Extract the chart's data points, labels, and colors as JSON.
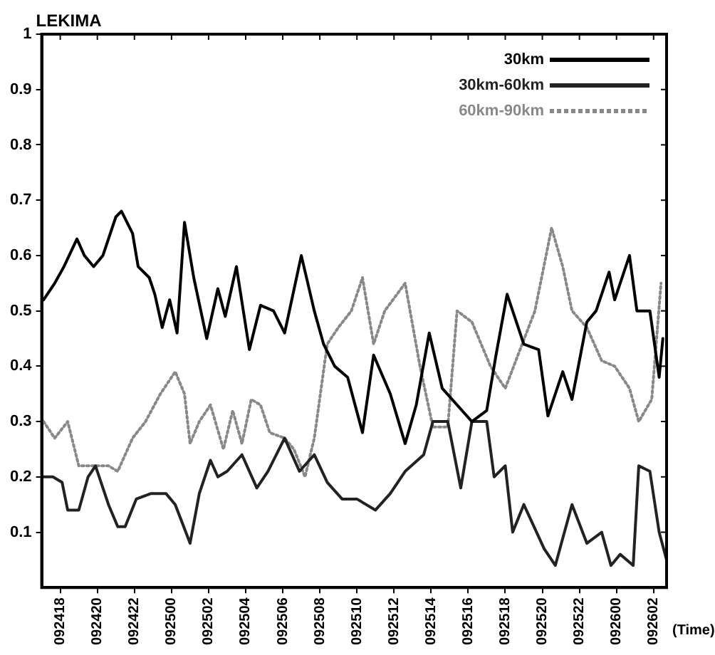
{
  "chart_data": {
    "type": "line",
    "title": "LEKIMA",
    "xlabel": "(Time)",
    "xlim": [
      "--09-24T17:00",
      "--09-26T02:42"
    ],
    "xticks": [
      {
        "value": "--09-24T18:00",
        "label": "092418"
      },
      {
        "value": "--09-24T20:00",
        "label": "092420"
      },
      {
        "value": "--09-24T22:00",
        "label": "092422"
      },
      {
        "value": "--09-25T00:00",
        "label": "092500"
      },
      {
        "value": "--09-25T02:00",
        "label": "092502"
      },
      {
        "value": "--09-25T04:00",
        "label": "092504"
      },
      {
        "value": "--09-25T06:00",
        "label": "092506"
      },
      {
        "value": "--09-25T08:00",
        "label": "092508"
      },
      {
        "value": "--09-25T10:00",
        "label": "092510"
      },
      {
        "value": "--09-25T12:00",
        "label": "092512"
      },
      {
        "value": "--09-25T14:00",
        "label": "092514"
      },
      {
        "value": "--09-25T16:00",
        "label": "092516"
      },
      {
        "value": "--09-25T18:00",
        "label": "092518"
      },
      {
        "value": "--09-25T20:00",
        "label": "092520"
      },
      {
        "value": "--09-25T22:00",
        "label": "092522"
      },
      {
        "value": "--09-26T00:00",
        "label": "092600"
      },
      {
        "value": "--09-26T02:00",
        "label": "092602"
      }
    ],
    "ylim": [
      0,
      1
    ],
    "yticks": [
      0.1,
      0.2,
      0.3,
      0.4,
      0.5,
      0.6,
      0.7,
      0.8,
      0.9,
      1
    ],
    "grid": false,
    "legend": "top right",
    "marker": "none",
    "series": [
      {
        "name": "30km",
        "color": "#000000",
        "line_style": "solid",
        "x": [
          "--09-24T17:06",
          "--09-24T17:42",
          "--09-24T18:12",
          "--09-24T18:54",
          "--09-24T19:18",
          "--09-24T19:48",
          "--09-24T20:18",
          "--09-24T21:00",
          "--09-24T21:18",
          "--09-24T21:54",
          "--09-24T22:12",
          "--09-24T22:48",
          "--09-24T23:06",
          "--09-24T23:30",
          "--09-24T23:54",
          "--09-25T00:18",
          "--09-25T00:42",
          "--09-25T01:12",
          "--09-25T01:54",
          "--09-25T02:30",
          "--09-25T02:54",
          "--09-25T03:30",
          "--09-25T04:12",
          "--09-25T04:48",
          "--09-25T05:30",
          "--09-25T06:06",
          "--09-25T07:00",
          "--09-25T07:42",
          "--09-25T08:12",
          "--09-25T08:48",
          "--09-25T09:30",
          "--09-25T10:18",
          "--09-25T10:54",
          "--09-25T11:48",
          "--09-25T12:36",
          "--09-25T13:12",
          "--09-25T13:54",
          "--09-25T14:36",
          "--09-25T15:24",
          "--09-25T16:12",
          "--09-25T17:00",
          "--09-25T17:30",
          "--09-25T18:06",
          "--09-25T19:00",
          "--09-25T19:48",
          "--09-25T20:18",
          "--09-25T21:06",
          "--09-25T21:36",
          "--09-25T22:24",
          "--09-25T22:54",
          "--09-25T23:36",
          "--09-25T23:54",
          "--09-26T00:42",
          "--09-26T01:06",
          "--09-26T01:48",
          "--09-26T02:18",
          "--09-26T02:30"
        ],
        "values": [
          0.52,
          0.55,
          0.58,
          0.63,
          0.6,
          0.58,
          0.6,
          0.67,
          0.68,
          0.64,
          0.58,
          0.56,
          0.53,
          0.47,
          0.52,
          0.46,
          0.66,
          0.56,
          0.45,
          0.54,
          0.49,
          0.58,
          0.43,
          0.51,
          0.5,
          0.46,
          0.6,
          0.5,
          0.44,
          0.4,
          0.38,
          0.28,
          0.42,
          0.35,
          0.26,
          0.33,
          0.46,
          0.36,
          0.33,
          0.3,
          0.32,
          0.42,
          0.53,
          0.44,
          0.43,
          0.31,
          0.39,
          0.34,
          0.48,
          0.5,
          0.57,
          0.52,
          0.6,
          0.5,
          0.5,
          0.38,
          0.45
        ]
      },
      {
        "name": "30km-60km",
        "color": "#222222",
        "line_style": "solid",
        "x": [
          "--09-24T17:06",
          "--09-24T17:36",
          "--09-24T18:06",
          "--09-24T18:24",
          "--09-24T19:00",
          "--09-24T19:30",
          "--09-24T19:54",
          "--09-24T20:36",
          "--09-24T21:06",
          "--09-24T21:30",
          "--09-24T22:06",
          "--09-24T22:54",
          "--09-24T23:42",
          "--09-25T00:12",
          "--09-25T01:00",
          "--09-25T01:30",
          "--09-25T02:06",
          "--09-25T02:30",
          "--09-25T03:00",
          "--09-25T03:48",
          "--09-25T04:36",
          "--09-25T05:12",
          "--09-25T06:06",
          "--09-25T06:54",
          "--09-25T07:42",
          "--09-25T08:24",
          "--09-25T09:12",
          "--09-25T10:00",
          "--09-25T11:00",
          "--09-25T11:48",
          "--09-25T12:36",
          "--09-25T13:36",
          "--09-25T14:06",
          "--09-25T14:54",
          "--09-25T15:36",
          "--09-25T16:12",
          "--09-25T17:00",
          "--09-25T17:24",
          "--09-25T18:00",
          "--09-25T18:24",
          "--09-25T19:00",
          "--09-25T20:06",
          "--09-25T20:42",
          "--09-25T21:36",
          "--09-25T22:24",
          "--09-25T23:12",
          "--09-25T23:42",
          "--09-26T00:12",
          "--09-26T00:54",
          "--09-26T01:12",
          "--09-26T01:48",
          "--09-26T02:18",
          "--09-26T02:42"
        ],
        "values": [
          0.2,
          0.2,
          0.19,
          0.14,
          0.14,
          0.2,
          0.22,
          0.15,
          0.11,
          0.11,
          0.16,
          0.17,
          0.17,
          0.15,
          0.08,
          0.17,
          0.23,
          0.2,
          0.21,
          0.24,
          0.18,
          0.21,
          0.27,
          0.21,
          0.24,
          0.19,
          0.16,
          0.16,
          0.14,
          0.17,
          0.21,
          0.24,
          0.3,
          0.3,
          0.18,
          0.3,
          0.3,
          0.2,
          0.22,
          0.1,
          0.15,
          0.07,
          0.04,
          0.15,
          0.08,
          0.1,
          0.04,
          0.06,
          0.04,
          0.22,
          0.21,
          0.1,
          0.05
        ]
      },
      {
        "name": "60km-90km",
        "color": "#888888",
        "line_style": "dotted",
        "x": [
          "--09-24T17:06",
          "--09-24T17:42",
          "--09-24T18:24",
          "--09-24T19:00",
          "--09-24T19:48",
          "--09-24T20:36",
          "--09-24T21:06",
          "--09-24T21:54",
          "--09-24T22:36",
          "--09-24T23:24",
          "--09-25T00:12",
          "--09-25T00:42",
          "--09-25T01:00",
          "--09-25T01:30",
          "--09-25T02:06",
          "--09-25T02:48",
          "--09-25T03:18",
          "--09-25T03:48",
          "--09-25T04:18",
          "--09-25T04:48",
          "--09-25T05:18",
          "--09-25T06:06",
          "--09-25T06:36",
          "--09-25T07:12",
          "--09-25T07:42",
          "--09-25T08:24",
          "--09-25T09:00",
          "--09-25T09:42",
          "--09-25T10:18",
          "--09-25T10:54",
          "--09-25T11:30",
          "--09-25T12:36",
          "--09-25T13:24",
          "--09-25T14:06",
          "--09-25T14:54",
          "--09-25T15:24",
          "--09-25T16:12",
          "--09-25T16:42",
          "--09-25T17:12",
          "--09-25T18:00",
          "--09-25T18:48",
          "--09-25T19:36",
          "--09-25T20:30",
          "--09-25T21:06",
          "--09-25T21:36",
          "--09-25T22:24",
          "--09-25T23:12",
          "--09-25T23:54",
          "--09-26T00:42",
          "--09-26T01:12",
          "--09-26T01:54",
          "--09-26T02:24"
        ],
        "values": [
          0.3,
          0.27,
          0.3,
          0.22,
          0.22,
          0.22,
          0.21,
          0.27,
          0.3,
          0.35,
          0.39,
          0.35,
          0.26,
          0.3,
          0.33,
          0.25,
          0.32,
          0.26,
          0.34,
          0.33,
          0.28,
          0.27,
          0.25,
          0.2,
          0.27,
          0.44,
          0.47,
          0.5,
          0.56,
          0.44,
          0.5,
          0.55,
          0.4,
          0.29,
          0.29,
          0.5,
          0.48,
          0.44,
          0.4,
          0.36,
          0.43,
          0.5,
          0.65,
          0.58,
          0.5,
          0.47,
          0.41,
          0.4,
          0.36,
          0.3,
          0.34,
          0.55
        ]
      }
    ]
  }
}
